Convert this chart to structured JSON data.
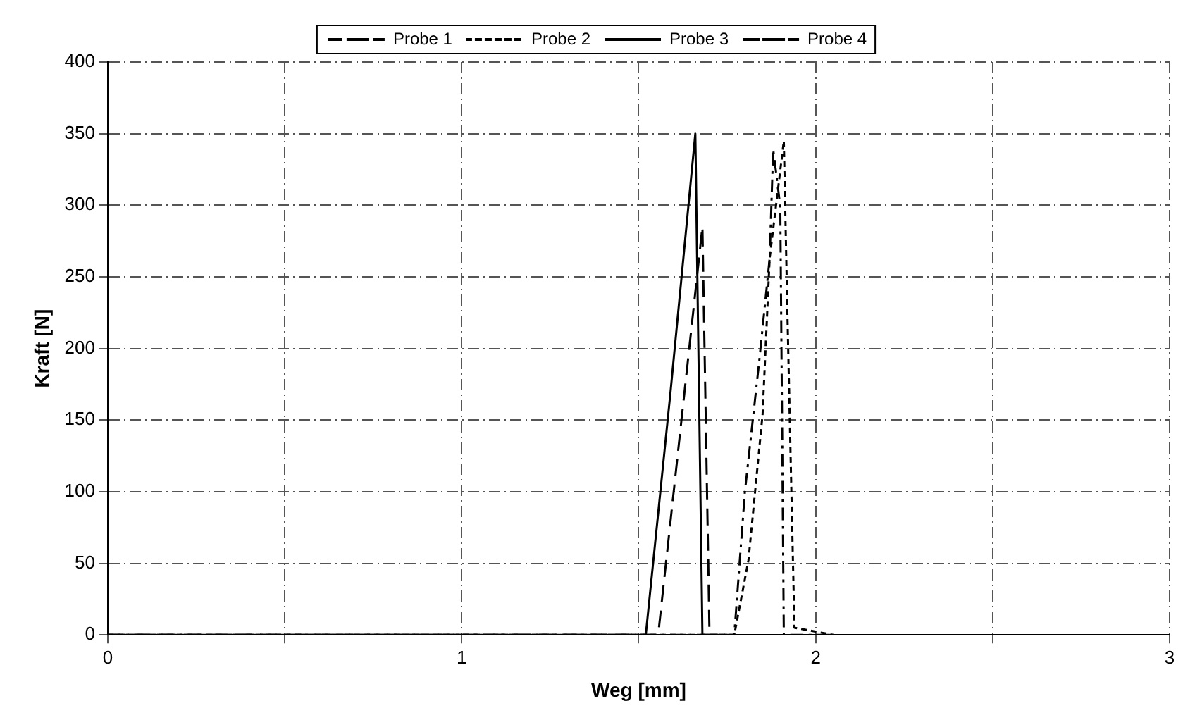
{
  "chart_data": {
    "type": "line",
    "xlabel": "Weg [mm]",
    "ylabel": "Kraft [N]",
    "xlim": [
      0,
      3
    ],
    "xticks": [
      0,
      {
        "value": 0.5,
        "label": null
      },
      1,
      {
        "value": 1.5,
        "label": null
      },
      2,
      {
        "value": 2.5,
        "label": null
      },
      3
    ],
    "ylim": [
      0,
      400
    ],
    "yticks": [
      0,
      50,
      100,
      150,
      200,
      250,
      300,
      350,
      400
    ],
    "grid": true,
    "legend": "top",
    "marker": "none",
    "series": [
      {
        "name": "Probe 1",
        "color": "#000000",
        "line_style": "dashdot",
        "x": [
          0,
          1.77,
          1.8,
          1.84,
          1.87,
          1.88,
          1.9,
          1.91,
          2.05
        ],
        "values": [
          0,
          0,
          100,
          190,
          263,
          339,
          299,
          0,
          0
        ]
      },
      {
        "name": "Probe 2",
        "color": "#000000",
        "line_style": "dotted",
        "x": [
          0,
          1.77,
          1.81,
          1.85,
          1.87,
          1.91,
          1.92,
          1.94,
          2.05
        ],
        "values": [
          0,
          0,
          52,
          154,
          263,
          345,
          226,
          5,
          0
        ]
      },
      {
        "name": "Probe 3",
        "color": "#000000",
        "line_style": "solid",
        "x": [
          0,
          1.52,
          1.59,
          1.66,
          1.68,
          1.72
        ],
        "values": [
          0,
          0,
          170,
          350,
          0,
          0
        ]
      },
      {
        "name": "Probe 4",
        "color": "#000000",
        "line_style": "dashed",
        "x": [
          0,
          1.555,
          1.68,
          1.7,
          1.75
        ],
        "values": [
          0,
          0,
          285,
          0,
          0
        ]
      }
    ]
  }
}
